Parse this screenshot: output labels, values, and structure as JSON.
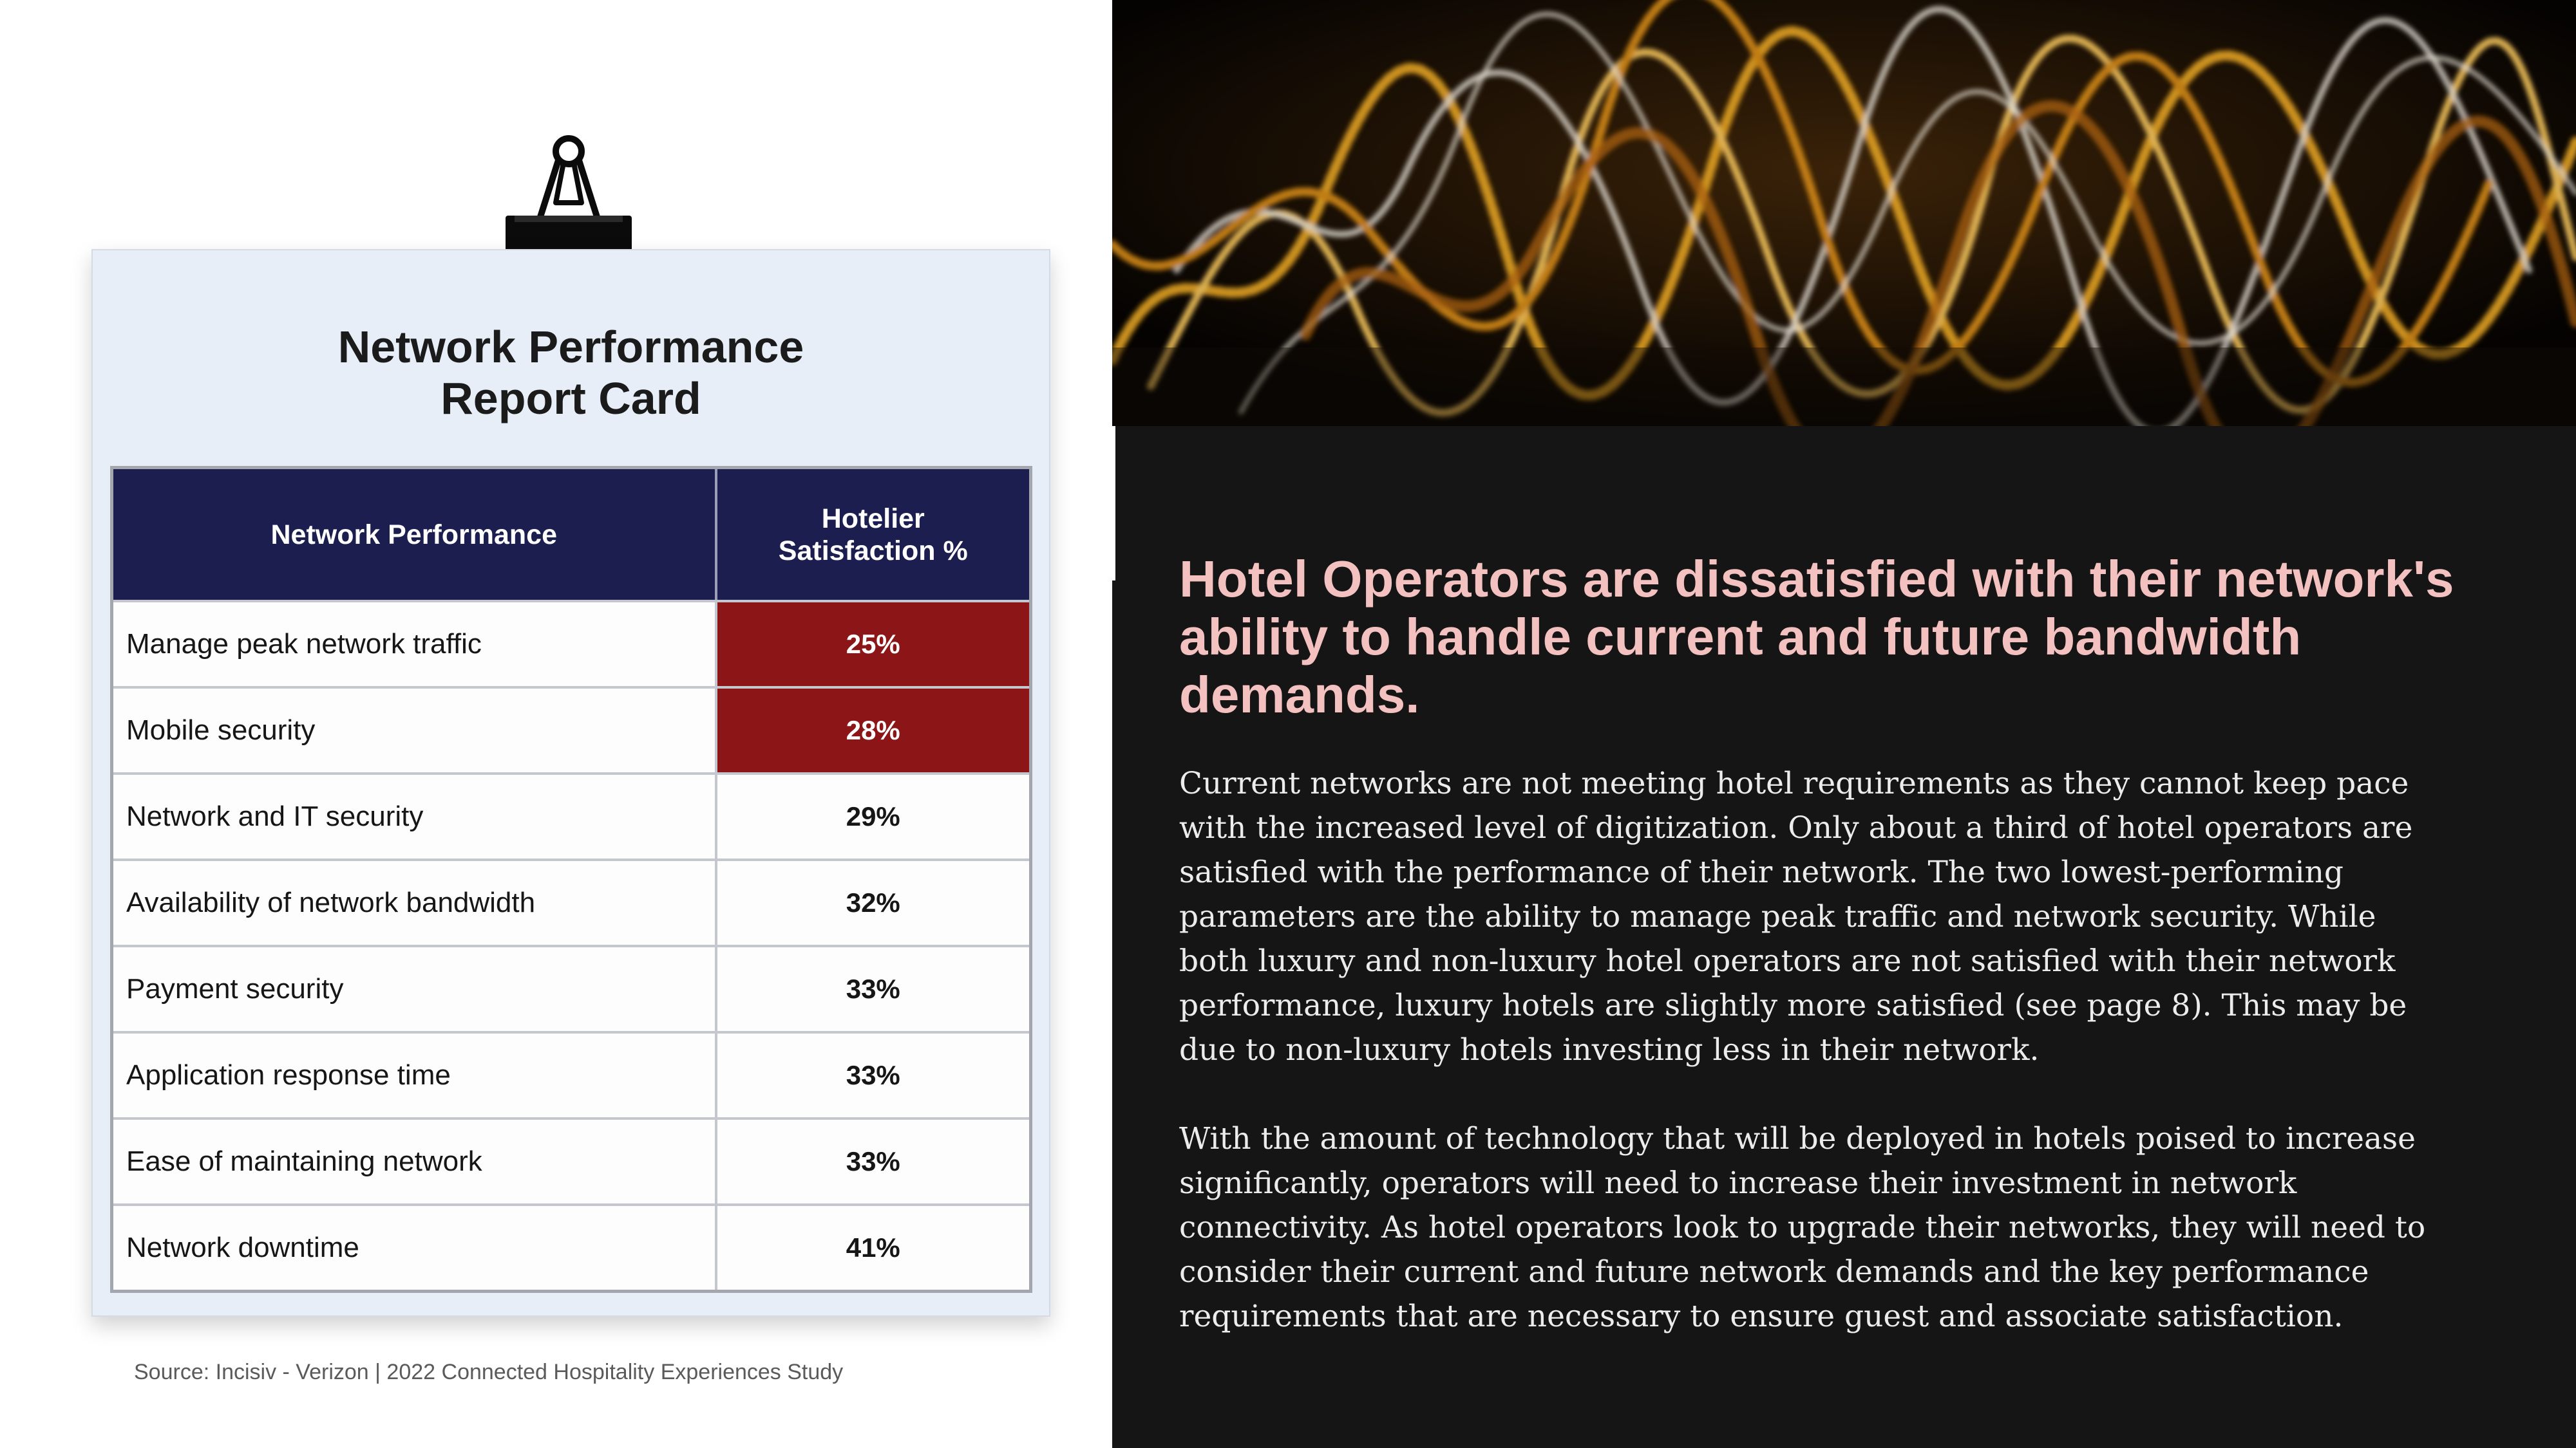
{
  "report_card": {
    "title": "Network Performance\nReport Card",
    "columns": [
      "Network Performance",
      "Hotelier\nSatisfaction %"
    ],
    "rows": [
      {
        "label": "Manage peak network traffic",
        "value": "25%"
      },
      {
        "label": "Mobile security",
        "value": "28%"
      },
      {
        "label": "Network and IT security",
        "value": "29%"
      },
      {
        "label": "Availability of network bandwidth",
        "value": "32%"
      },
      {
        "label": "Payment security",
        "value": "33%"
      },
      {
        "label": "Application response time",
        "value": "33%"
      },
      {
        "label": "Ease of maintaining network",
        "value": "33%"
      },
      {
        "label": "Network downtime",
        "value": "41%"
      }
    ],
    "highlight_color": "#8b1517",
    "header_color": "#1b1e4f"
  },
  "source": "Source: Incisiv - Verizon | 2022 Connected Hospitality Experiences Study",
  "article": {
    "headline": "Hotel Operators are dissatisfied with their network's ability to handle current and future bandwidth demands.",
    "paragraph_1": "Current networks are not meeting hotel requirements as they cannot keep pace with the increased level of digitization. Only about a third of hotel operators are satisfied with the performance of their network. The two lowest-performing parameters are the ability to manage peak traffic and network security. While both luxury and non-luxury hotel operators are not satisfied with their network performance, luxury hotels are slightly more satisfied (see page 8). This may be due to non-luxury hotels investing less in their network.",
    "paragraph_2": "With the amount of technology that will be deployed in hotels poised to increase significantly, operators will need to increase their investment in network connectivity. As hotel operators look to upgrade their networks, they will need to consider their current and future network demands and the key performance requirements that are necessary to ensure guest and associate satisfaction.",
    "headline_color": "#f3c1bf",
    "background_color": "#161515"
  }
}
